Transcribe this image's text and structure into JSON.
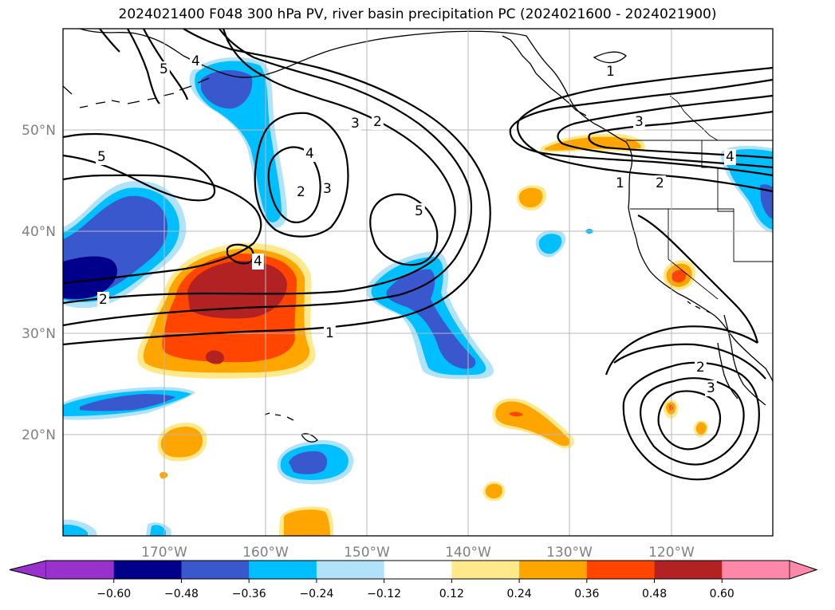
{
  "title": "2024021400 F048 300 hPa PV, river basin precipitation PC (2024021600 - 2024021900)",
  "map": {
    "lon_range": [
      -180,
      -110
    ],
    "lat_range": [
      10,
      60
    ],
    "lon_ticks": [
      "170°W",
      "160°W",
      "150°W",
      "140°W",
      "130°W",
      "120°W"
    ],
    "lat_ticks": [
      "20°N",
      "30°N",
      "40°N",
      "50°N"
    ],
    "gridlines": true,
    "tick_color": "#808080"
  },
  "contour_labels": [
    "1",
    "2",
    "3",
    "4",
    "5"
  ],
  "colorbar": {
    "ticks": [
      "−0.60",
      "−0.48",
      "−0.36",
      "−0.24",
      "−0.12",
      "0.12",
      "0.24",
      "0.36",
      "0.48",
      "0.60"
    ],
    "colors": [
      "#9932cc",
      "#00008b",
      "#3a58cd",
      "#00bfff",
      "#b0e2fa",
      "#ffffff",
      "#ffe98a",
      "#ffa500",
      "#ff4500",
      "#b22222",
      "#ff88aa"
    ],
    "extend": "both"
  }
}
